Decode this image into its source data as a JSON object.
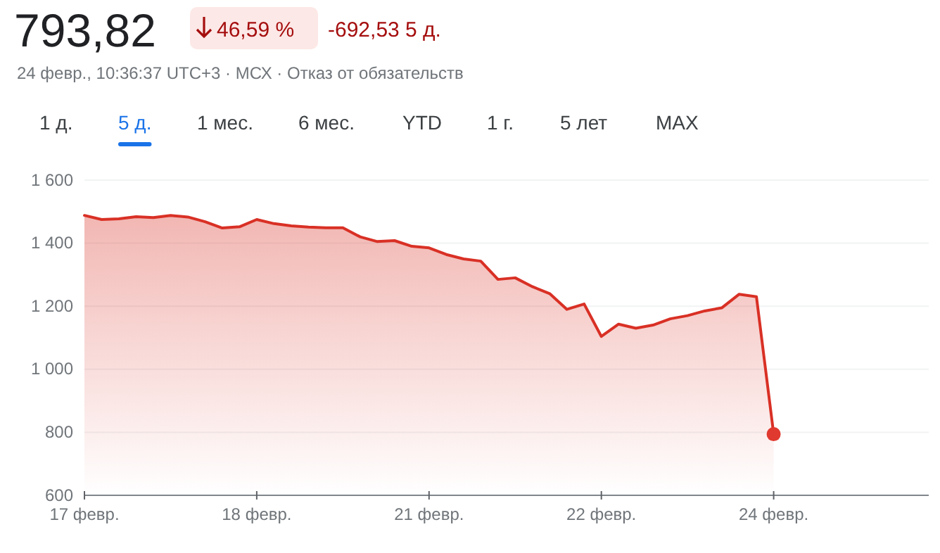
{
  "chart_data": {
    "type": "area",
    "title": "793,82",
    "subtitle": "24 февр., 10:36:37 UTC+3 · МСХ · Отказ от обязательств",
    "annotations": [
      "46,59 %",
      "-692,53 5 д.",
      "1 д.",
      "5 д.",
      "1 мес.",
      "6 мес.",
      "YTD",
      "1 г.",
      "5 лет",
      "MAX"
    ],
    "categories": [
      "17 февр.",
      null,
      null,
      null,
      null,
      null,
      null,
      null,
      null,
      null,
      "18 февр.",
      null,
      null,
      null,
      null,
      null,
      null,
      null,
      null,
      null,
      "21 февр.",
      null,
      null,
      null,
      null,
      null,
      null,
      null,
      null,
      null,
      "22 февр.",
      null,
      null,
      null,
      null,
      null,
      null,
      null,
      null,
      null,
      "24 февр.",
      null,
      null,
      null,
      null,
      null,
      null,
      null,
      null
    ],
    "ylim": [
      600,
      1600
    ],
    "yticks": [
      {
        "value": 600,
        "label": "600"
      },
      {
        "value": 800,
        "label": "800"
      },
      {
        "value": 1000,
        "label": "1 000"
      },
      {
        "value": 1200,
        "label": "1 200"
      },
      {
        "value": 1400,
        "label": "1 400"
      },
      {
        "value": 1600,
        "label": "1 600"
      }
    ],
    "grid": "y",
    "series": [
      {
        "color": "#d93025",
        "values": [
          1488,
          1475,
          1477,
          1484,
          1481,
          1488,
          1483,
          1468,
          1448,
          1452,
          1475,
          1462,
          1455,
          1451,
          1449,
          1449,
          1420,
          1405,
          1408,
          1390,
          1385,
          1364,
          1350,
          1343,
          1285,
          1290,
          1262,
          1240,
          1190,
          1207,
          1104,
          1143,
          1130,
          1140,
          1160,
          1170,
          1185,
          1195,
          1238,
          1230,
          794,
          null,
          null,
          null,
          null,
          null,
          null,
          null,
          null
        ]
      },
      {
        "type": "scatter",
        "color": "#e0392f",
        "x": [
          "24 февр."
        ],
        "values": [
          794
        ]
      }
    ]
  }
}
